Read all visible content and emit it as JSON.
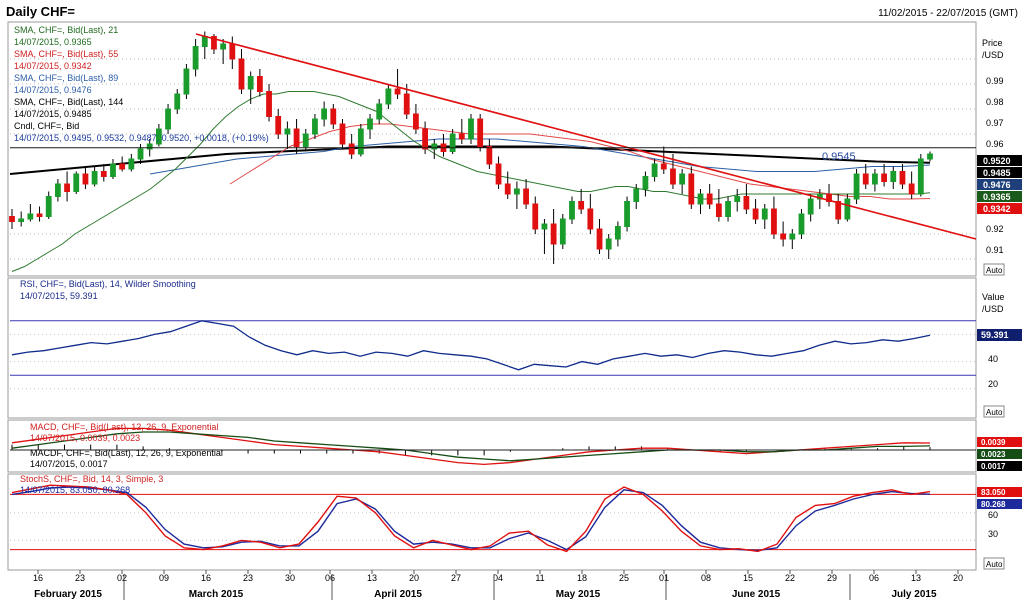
{
  "header": {
    "title": "Daily CHF=",
    "date_range": "11/02/2015 - 22/07/2015 (GMT)"
  },
  "colors": {
    "up": "#1a9c2c",
    "down": "#e01010",
    "sma21": "#2f7a2f",
    "sma55": "#e34a4a",
    "sma89": "#2c5fa8",
    "sma144": "#000000",
    "trend": "#e01010",
    "rsi": "#0f2c8c",
    "macd": "#e01010",
    "signal": "#164d16",
    "stoch_k": "#e01010",
    "stoch_d": "#1d2a9c",
    "ref_line": "#3838b0",
    "stoch_ref": "#e01010"
  },
  "price_panel": {
    "legend": [
      {
        "label": "SMA, CHF=, Bid(Last), 21",
        "value": "14/07/2015, 0.9365",
        "color": "#1f6b1f"
      },
      {
        "label": "SMA, CHF=, Bid(Last), 55",
        "value": "14/07/2015, 0.9342",
        "color": "#d02020"
      },
      {
        "label": "SMA, CHF=, Bid(Last), 89",
        "value": "14/07/2015, 0.9476",
        "color": "#2c5fa8"
      },
      {
        "label": "SMA, CHF=, Bid(Last), 144",
        "value": "14/07/2015, 0.9485",
        "color": "#000000"
      },
      {
        "label": "Cndl, CHF=, Bid",
        "value": "14/07/2015, 0.9495, 0.9532, 0.9487, 0.9520, +0.0018, (+0.19%)",
        "color": "#000000"
      }
    ],
    "axis_title": "Price",
    "axis_unit": "/USD",
    "ticks": [
      "0.99",
      "0.98",
      "0.97",
      "0.96",
      "0.92",
      "0.91"
    ],
    "level_label": "0.9545",
    "badges": [
      {
        "text": "0.9520",
        "bg": "#000000",
        "fg": "#ffffff"
      },
      {
        "text": "0.9485",
        "bg": "#000000",
        "fg": "#ffffff"
      },
      {
        "text": "0.9476",
        "bg": "#1e3f7a",
        "fg": "#ffffff"
      },
      {
        "text": "0.9365",
        "bg": "#1a5a1a",
        "fg": "#ffffff"
      },
      {
        "text": "0.9342",
        "bg": "#e01010",
        "fg": "#ffffff"
      }
    ],
    "auto_label": "Auto"
  },
  "rsi_panel": {
    "legend_label": "RSI, CHF=, Bid(Last), 14, Wilder Smoothing",
    "legend_value": "14/07/2015, 59.391",
    "axis_title": "Value",
    "axis_unit": "/USD",
    "ticks": [
      "60",
      "40",
      "20"
    ],
    "badge": "59.391",
    "auto_label": "Auto"
  },
  "macd_panel": {
    "legend1_label": "MACD, CHF=, Bid(Last), 12, 26, 9, Exponential",
    "legend1_value": "14/07/2015, 0.0039, 0.0023",
    "legend2_label": "MACDF, CHF=, Bid(Last), 12, 26, 9, Exponential",
    "legend2_value": "14/07/2015, 0.0017",
    "badges": [
      "0.0039",
      "0.0023",
      "0.0017"
    ],
    "auto_label": "Auto"
  },
  "stoch_panel": {
    "legend_label": "StochS, CHF=, Bid, 14, 3, Simple, 3",
    "legend_value": "14/07/2015, 83.050, 80.268",
    "ticks": [
      "60",
      "30"
    ],
    "badges": [
      "83.050",
      "80.268"
    ],
    "auto_label": "Auto"
  },
  "x_axis": {
    "ticks": [
      "16",
      "23",
      "02",
      "09",
      "16",
      "23",
      "30",
      "06",
      "13",
      "20",
      "27",
      "04",
      "11",
      "18",
      "25",
      "01",
      "08",
      "15",
      "22",
      "29",
      "06",
      "13",
      "20"
    ],
    "months": [
      "February 2015",
      "March 2015",
      "April 2015",
      "May 2015",
      "June 2015",
      "July 2015"
    ]
  },
  "chart_data": {
    "type": "candlestick",
    "title": "Daily CHF=",
    "x_range": [
      "11/02/2015",
      "22/07/2015"
    ],
    "price_ylim": [
      0.904,
      1.004
    ],
    "resistance_level": 0.9545,
    "trendline": {
      "from": [
        "16/03/2015",
        1.0
      ],
      "to": [
        "22/07/2015",
        0.918
      ]
    },
    "candles_ohlc": [
      [
        0.927,
        0.93,
        0.922,
        0.925
      ],
      [
        0.925,
        0.929,
        0.923,
        0.926
      ],
      [
        0.926,
        0.932,
        0.925,
        0.928
      ],
      [
        0.928,
        0.931,
        0.925,
        0.927
      ],
      [
        0.927,
        0.937,
        0.926,
        0.935
      ],
      [
        0.935,
        0.942,
        0.933,
        0.94
      ],
      [
        0.94,
        0.945,
        0.933,
        0.937
      ],
      [
        0.937,
        0.945,
        0.936,
        0.944
      ],
      [
        0.944,
        0.947,
        0.938,
        0.94
      ],
      [
        0.94,
        0.947,
        0.939,
        0.945
      ],
      [
        0.945,
        0.948,
        0.941,
        0.943
      ],
      [
        0.943,
        0.95,
        0.942,
        0.948
      ],
      [
        0.948,
        0.951,
        0.945,
        0.946
      ],
      [
        0.946,
        0.952,
        0.945,
        0.95
      ],
      [
        0.95,
        0.956,
        0.948,
        0.954
      ],
      [
        0.954,
        0.958,
        0.951,
        0.956
      ],
      [
        0.956,
        0.964,
        0.955,
        0.962
      ],
      [
        0.962,
        0.972,
        0.96,
        0.97
      ],
      [
        0.97,
        0.978,
        0.968,
        0.976
      ],
      [
        0.976,
        0.988,
        0.974,
        0.986
      ],
      [
        0.986,
        0.998,
        0.983,
        0.995
      ],
      [
        0.995,
        1.001,
        0.99,
        0.999
      ],
      [
        0.999,
        1.0,
        0.992,
        0.994
      ],
      [
        0.994,
        0.998,
        0.988,
        0.996
      ],
      [
        0.996,
        0.999,
        0.986,
        0.99
      ],
      [
        0.99,
        0.994,
        0.976,
        0.978
      ],
      [
        0.978,
        0.985,
        0.972,
        0.983
      ],
      [
        0.983,
        0.986,
        0.975,
        0.977
      ],
      [
        0.977,
        0.98,
        0.965,
        0.967
      ],
      [
        0.967,
        0.97,
        0.958,
        0.96
      ],
      [
        0.96,
        0.965,
        0.954,
        0.962
      ],
      [
        0.962,
        0.966,
        0.952,
        0.955
      ],
      [
        0.955,
        0.962,
        0.953,
        0.96
      ],
      [
        0.96,
        0.968,
        0.958,
        0.966
      ],
      [
        0.966,
        0.973,
        0.963,
        0.97
      ],
      [
        0.97,
        0.972,
        0.962,
        0.964
      ],
      [
        0.964,
        0.966,
        0.954,
        0.956
      ],
      [
        0.956,
        0.96,
        0.95,
        0.952
      ],
      [
        0.952,
        0.964,
        0.951,
        0.962
      ],
      [
        0.962,
        0.968,
        0.958,
        0.966
      ],
      [
        0.966,
        0.974,
        0.964,
        0.972
      ],
      [
        0.972,
        0.98,
        0.97,
        0.978
      ],
      [
        0.978,
        0.986,
        0.974,
        0.976
      ],
      [
        0.976,
        0.98,
        0.966,
        0.968
      ],
      [
        0.968,
        0.972,
        0.96,
        0.962
      ],
      [
        0.962,
        0.965,
        0.952,
        0.954
      ],
      [
        0.954,
        0.958,
        0.95,
        0.956
      ],
      [
        0.956,
        0.96,
        0.951,
        0.953
      ],
      [
        0.953,
        0.962,
        0.952,
        0.96
      ],
      [
        0.96,
        0.966,
        0.956,
        0.958
      ],
      [
        0.958,
        0.968,
        0.956,
        0.966
      ],
      [
        0.966,
        0.968,
        0.953,
        0.955
      ],
      [
        0.955,
        0.958,
        0.946,
        0.948
      ],
      [
        0.948,
        0.951,
        0.938,
        0.94
      ],
      [
        0.94,
        0.945,
        0.934,
        0.936
      ],
      [
        0.936,
        0.941,
        0.93,
        0.938
      ],
      [
        0.938,
        0.942,
        0.93,
        0.932
      ],
      [
        0.932,
        0.935,
        0.92,
        0.922
      ],
      [
        0.922,
        0.926,
        0.912,
        0.924
      ],
      [
        0.924,
        0.93,
        0.908,
        0.916
      ],
      [
        0.916,
        0.928,
        0.914,
        0.926
      ],
      [
        0.926,
        0.935,
        0.924,
        0.933
      ],
      [
        0.933,
        0.938,
        0.928,
        0.93
      ],
      [
        0.93,
        0.936,
        0.92,
        0.922
      ],
      [
        0.922,
        0.926,
        0.912,
        0.914
      ],
      [
        0.914,
        0.92,
        0.91,
        0.918
      ],
      [
        0.918,
        0.925,
        0.915,
        0.923
      ],
      [
        0.923,
        0.935,
        0.921,
        0.933
      ],
      [
        0.933,
        0.94,
        0.93,
        0.938
      ],
      [
        0.938,
        0.945,
        0.935,
        0.943
      ],
      [
        0.943,
        0.95,
        0.941,
        0.948
      ],
      [
        0.948,
        0.955,
        0.944,
        0.946
      ],
      [
        0.946,
        0.952,
        0.938,
        0.94
      ],
      [
        0.94,
        0.946,
        0.936,
        0.944
      ],
      [
        0.944,
        0.947,
        0.93,
        0.932
      ],
      [
        0.932,
        0.938,
        0.928,
        0.936
      ],
      [
        0.936,
        0.94,
        0.93,
        0.932
      ],
      [
        0.932,
        0.938,
        0.925,
        0.927
      ],
      [
        0.927,
        0.935,
        0.925,
        0.933
      ],
      [
        0.933,
        0.938,
        0.929,
        0.935
      ],
      [
        0.935,
        0.94,
        0.928,
        0.93
      ],
      [
        0.93,
        0.934,
        0.924,
        0.926
      ],
      [
        0.926,
        0.932,
        0.922,
        0.93
      ],
      [
        0.93,
        0.935,
        0.918,
        0.92
      ],
      [
        0.92,
        0.925,
        0.915,
        0.918
      ],
      [
        0.918,
        0.922,
        0.914,
        0.92
      ],
      [
        0.92,
        0.93,
        0.918,
        0.928
      ],
      [
        0.928,
        0.936,
        0.925,
        0.934
      ],
      [
        0.934,
        0.938,
        0.93,
        0.936
      ],
      [
        0.936,
        0.94,
        0.931,
        0.933
      ],
      [
        0.933,
        0.936,
        0.924,
        0.926
      ],
      [
        0.926,
        0.936,
        0.925,
        0.934
      ],
      [
        0.934,
        0.946,
        0.932,
        0.944
      ],
      [
        0.944,
        0.948,
        0.938,
        0.94
      ],
      [
        0.94,
        0.946,
        0.937,
        0.944
      ],
      [
        0.944,
        0.948,
        0.939,
        0.941
      ],
      [
        0.941,
        0.947,
        0.938,
        0.945
      ],
      [
        0.945,
        0.948,
        0.938,
        0.94
      ],
      [
        0.94,
        0.945,
        0.934,
        0.936
      ],
      [
        0.936,
        0.952,
        0.935,
        0.95
      ],
      [
        0.95,
        0.953,
        0.949,
        0.952
      ]
    ],
    "sma21": [
      0.905,
      0.907,
      0.91,
      0.913,
      0.916,
      0.92,
      0.923,
      0.926,
      0.929,
      0.932,
      0.935,
      0.938,
      0.942,
      0.946,
      0.951,
      0.956,
      0.962,
      0.967,
      0.971,
      0.974,
      0.976,
      0.976,
      0.977,
      0.977,
      0.977,
      0.976,
      0.975,
      0.973,
      0.971,
      0.969,
      0.965,
      0.961,
      0.957,
      0.954,
      0.951,
      0.949,
      0.947,
      0.945,
      0.944,
      0.943,
      0.942,
      0.941,
      0.94,
      0.939,
      0.938,
      0.937,
      0.937,
      0.938,
      0.939,
      0.939,
      0.938,
      0.937,
      0.937,
      0.936,
      0.935,
      0.934,
      0.934,
      0.935,
      0.936,
      0.936,
      0.936,
      0.936,
      0.936,
      0.936,
      0.936,
      0.936,
      0.936,
      0.936,
      0.936,
      0.936,
      0.936,
      0.936,
      0.936,
      0.9365
    ],
    "sma55": [
      0.94,
      0.945,
      0.95,
      0.955,
      0.958,
      0.961,
      0.963,
      0.964,
      0.964,
      0.963,
      0.962,
      0.961,
      0.96,
      0.96,
      0.96,
      0.96,
      0.959,
      0.958,
      0.957,
      0.955,
      0.953,
      0.95,
      0.948,
      0.946,
      0.944,
      0.942,
      0.94,
      0.939,
      0.938,
      0.937,
      0.936,
      0.935,
      0.935,
      0.934,
      0.934,
      0.9342
    ],
    "sma89": [
      0.944,
      0.946,
      0.948,
      0.95,
      0.951,
      0.952,
      0.953,
      0.955,
      0.956,
      0.957,
      0.958,
      0.958,
      0.958,
      0.957,
      0.956,
      0.955,
      0.953,
      0.951,
      0.949,
      0.947,
      0.946,
      0.945,
      0.945,
      0.945,
      0.946,
      0.947,
      0.947,
      0.9476
    ],
    "sma144": [
      0.944,
      0.946,
      0.948,
      0.95,
      0.952,
      0.953,
      0.954,
      0.955,
      0.955,
      0.955,
      0.955,
      0.954,
      0.953,
      0.952,
      0.951,
      0.95,
      0.949,
      0.9485
    ],
    "rsi": [
      45,
      47,
      48,
      50,
      52,
      54,
      53,
      55,
      57,
      60,
      62,
      66,
      70,
      68,
      66,
      58,
      52,
      48,
      45,
      48,
      46,
      47,
      44,
      47,
      46,
      44,
      48,
      46,
      45,
      44,
      42,
      38,
      34,
      38,
      37,
      36,
      40,
      38,
      42,
      44,
      46,
      44,
      45,
      43,
      46,
      48,
      47,
      45,
      44,
      46,
      48,
      52,
      55,
      53,
      54,
      56,
      55,
      57,
      59.391
    ],
    "rsi_ylim": [
      0,
      100
    ],
    "rsi_levels": [
      70,
      30
    ],
    "macd": [
      0.004,
      0.006,
      0.008,
      0.01,
      0.012,
      0.012,
      0.011,
      0.009,
      0.007,
      0.005,
      0.003,
      0.002,
      0.001,
      0.0,
      -0.001,
      -0.003,
      -0.005,
      -0.007,
      -0.008,
      -0.007,
      -0.005,
      -0.003,
      -0.001,
      0.0,
      0.001,
      0.001,
      0.0,
      -0.001,
      -0.002,
      -0.001,
      0.0,
      0.001,
      0.002,
      0.003,
      0.004,
      0.0039
    ],
    "macd_signal": [
      0.001,
      0.003,
      0.005,
      0.007,
      0.009,
      0.01,
      0.01,
      0.009,
      0.008,
      0.007,
      0.005,
      0.004,
      0.003,
      0.002,
      0.001,
      0.0,
      -0.002,
      -0.004,
      -0.005,
      -0.006,
      -0.005,
      -0.004,
      -0.003,
      -0.002,
      -0.001,
      0.0,
      0.0,
      0.0,
      -0.001,
      -0.001,
      0.0,
      0.0,
      0.001,
      0.002,
      0.002,
      0.0023
    ],
    "stoch_k": [
      82,
      86,
      90,
      89,
      88,
      85,
      80,
      60,
      35,
      22,
      20,
      24,
      30,
      28,
      22,
      26,
      50,
      78,
      76,
      60,
      35,
      22,
      30,
      25,
      20,
      24,
      38,
      40,
      25,
      18,
      40,
      75,
      88,
      80,
      62,
      40,
      24,
      20,
      21,
      18,
      26,
      55,
      68,
      70,
      78,
      82,
      85,
      80,
      83.05
    ],
    "stoch_d": [
      80,
      83,
      87,
      88,
      87,
      85,
      82,
      66,
      42,
      26,
      22,
      23,
      28,
      29,
      24,
      24,
      40,
      70,
      75,
      64,
      40,
      26,
      28,
      26,
      22,
      22,
      32,
      38,
      30,
      20,
      34,
      66,
      85,
      82,
      68,
      46,
      28,
      22,
      20,
      19,
      22,
      46,
      62,
      68,
      75,
      80,
      83,
      81,
      80.268
    ],
    "stoch_ylim": [
      0,
      100
    ],
    "stoch_levels": [
      80,
      20
    ]
  }
}
